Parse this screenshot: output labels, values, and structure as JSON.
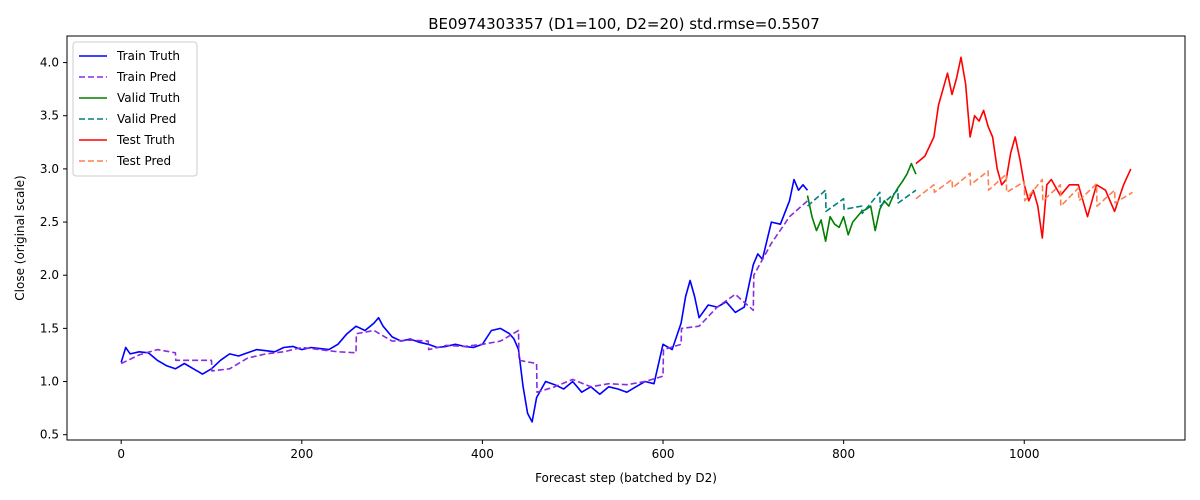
{
  "chart_data": {
    "type": "line",
    "title": "BE0974303357 (D1=100, D2=20) std.rmse=0.5507",
    "xlabel": "Forecast step (batched by D2)",
    "ylabel": "Close (original scale)",
    "xlim": [
      -60,
      1178
    ],
    "ylim": [
      0.45,
      4.25
    ],
    "xticks": [
      0,
      200,
      400,
      600,
      800,
      1000
    ],
    "yticks": [
      0.5,
      1.0,
      1.5,
      2.0,
      2.5,
      3.0,
      3.5,
      4.0
    ],
    "grid": false,
    "legend_position": "top-left",
    "series": [
      {
        "name": "Train Truth",
        "color": "#0000ff",
        "dash": "solid",
        "x": [
          0,
          5,
          10,
          20,
          30,
          40,
          50,
          60,
          70,
          80,
          90,
          100,
          110,
          120,
          130,
          140,
          150,
          160,
          170,
          180,
          190,
          200,
          210,
          220,
          230,
          240,
          250,
          260,
          270,
          280,
          285,
          290,
          300,
          310,
          320,
          330,
          340,
          350,
          360,
          370,
          380,
          390,
          400,
          410,
          420,
          430,
          435,
          440,
          445,
          450,
          455,
          460,
          470,
          480,
          490,
          500,
          510,
          520,
          530,
          540,
          550,
          560,
          570,
          580,
          590,
          600,
          610,
          620,
          625,
          630,
          635,
          640,
          650,
          660,
          670,
          680,
          690,
          700,
          705,
          710,
          720,
          730,
          740,
          745,
          750,
          755,
          760
        ],
        "y": [
          1.18,
          1.32,
          1.26,
          1.28,
          1.27,
          1.2,
          1.15,
          1.12,
          1.17,
          1.12,
          1.07,
          1.12,
          1.2,
          1.26,
          1.24,
          1.27,
          1.3,
          1.29,
          1.28,
          1.32,
          1.33,
          1.3,
          1.32,
          1.31,
          1.3,
          1.35,
          1.45,
          1.52,
          1.48,
          1.55,
          1.6,
          1.52,
          1.42,
          1.38,
          1.4,
          1.37,
          1.35,
          1.32,
          1.33,
          1.35,
          1.33,
          1.32,
          1.35,
          1.48,
          1.5,
          1.45,
          1.4,
          1.3,
          0.95,
          0.7,
          0.62,
          0.85,
          1.0,
          0.97,
          0.93,
          1.0,
          0.9,
          0.95,
          0.88,
          0.95,
          0.93,
          0.9,
          0.95,
          1.0,
          0.98,
          1.35,
          1.3,
          1.55,
          1.8,
          1.95,
          1.8,
          1.6,
          1.72,
          1.7,
          1.75,
          1.65,
          1.7,
          2.1,
          2.2,
          2.15,
          2.5,
          2.48,
          2.7,
          2.9,
          2.8,
          2.85,
          2.8
        ]
      },
      {
        "name": "Train Pred",
        "color": "#8a2be2",
        "dash": "dashed",
        "x": [
          0,
          20,
          40,
          60,
          60.5,
          80,
          100,
          100.5,
          120,
          140,
          160,
          180,
          200,
          220,
          240,
          260,
          260.5,
          280,
          300,
          320,
          340,
          340.5,
          360,
          380,
          400,
          420,
          440,
          440.5,
          460,
          460.5,
          480,
          500,
          520,
          540,
          560,
          580,
          600,
          600.5,
          620,
          620.5,
          640,
          660,
          680,
          700,
          700.5,
          720,
          740,
          760
        ],
        "y": [
          1.17,
          1.25,
          1.3,
          1.27,
          1.2,
          1.2,
          1.2,
          1.1,
          1.12,
          1.22,
          1.26,
          1.28,
          1.32,
          1.3,
          1.28,
          1.27,
          1.45,
          1.48,
          1.38,
          1.39,
          1.38,
          1.3,
          1.34,
          1.33,
          1.35,
          1.38,
          1.48,
          1.2,
          1.17,
          0.9,
          0.95,
          1.02,
          0.95,
          0.98,
          0.97,
          1.0,
          1.05,
          1.3,
          1.35,
          1.5,
          1.52,
          1.7,
          1.82,
          1.67,
          2.0,
          2.3,
          2.55,
          2.7
        ]
      },
      {
        "name": "Valid Truth",
        "color": "#008000",
        "dash": "solid",
        "x": [
          760,
          765,
          770,
          775,
          780,
          785,
          790,
          795,
          800,
          805,
          810,
          815,
          820,
          825,
          830,
          835,
          840,
          845,
          850,
          855,
          860,
          865,
          870,
          875,
          880
        ],
        "y": [
          2.75,
          2.55,
          2.42,
          2.52,
          2.32,
          2.55,
          2.48,
          2.45,
          2.55,
          2.38,
          2.5,
          2.55,
          2.6,
          2.62,
          2.65,
          2.42,
          2.62,
          2.7,
          2.65,
          2.75,
          2.82,
          2.88,
          2.95,
          3.05,
          2.95
        ]
      },
      {
        "name": "Valid Pred",
        "color": "#008080",
        "dash": "dashed",
        "x": [
          760,
          780,
          780.5,
          800,
          800.5,
          820,
          820.5,
          840,
          840.5,
          860,
          860.5,
          880
        ],
        "y": [
          2.65,
          2.8,
          2.6,
          2.72,
          2.62,
          2.65,
          2.58,
          2.78,
          2.65,
          2.8,
          2.68,
          2.8
        ]
      },
      {
        "name": "Test Truth",
        "color": "#ff0000",
        "dash": "solid",
        "x": [
          880,
          890,
          900,
          905,
          910,
          915,
          920,
          925,
          930,
          935,
          940,
          945,
          950,
          955,
          960,
          965,
          970,
          975,
          980,
          985,
          990,
          995,
          1000,
          1005,
          1010,
          1015,
          1020,
          1025,
          1030,
          1040,
          1050,
          1060,
          1070,
          1080,
          1090,
          1100,
          1110,
          1118
        ],
        "y": [
          3.05,
          3.12,
          3.3,
          3.6,
          3.75,
          3.9,
          3.7,
          3.85,
          4.05,
          3.8,
          3.3,
          3.5,
          3.45,
          3.55,
          3.4,
          3.3,
          3.0,
          2.85,
          2.9,
          3.15,
          3.3,
          3.1,
          2.85,
          2.7,
          2.8,
          2.65,
          2.35,
          2.85,
          2.9,
          2.75,
          2.85,
          2.85,
          2.55,
          2.85,
          2.8,
          2.6,
          2.85,
          3.0
        ]
      },
      {
        "name": "Test Pred",
        "color": "#ff7f50",
        "dash": "dashed",
        "x": [
          880,
          900,
          900.5,
          920,
          920.5,
          940,
          940.5,
          960,
          960.5,
          980,
          980.5,
          1000,
          1000.5,
          1020,
          1020.5,
          1040,
          1040.5,
          1060,
          1060.5,
          1080,
          1080.5,
          1100,
          1100.5,
          1120
        ],
        "y": [
          2.72,
          2.85,
          2.78,
          2.9,
          2.82,
          2.96,
          2.85,
          2.98,
          2.8,
          2.95,
          2.78,
          2.88,
          2.7,
          2.9,
          2.7,
          2.85,
          2.65,
          2.82,
          2.7,
          2.86,
          2.65,
          2.8,
          2.68,
          2.78
        ]
      }
    ]
  }
}
